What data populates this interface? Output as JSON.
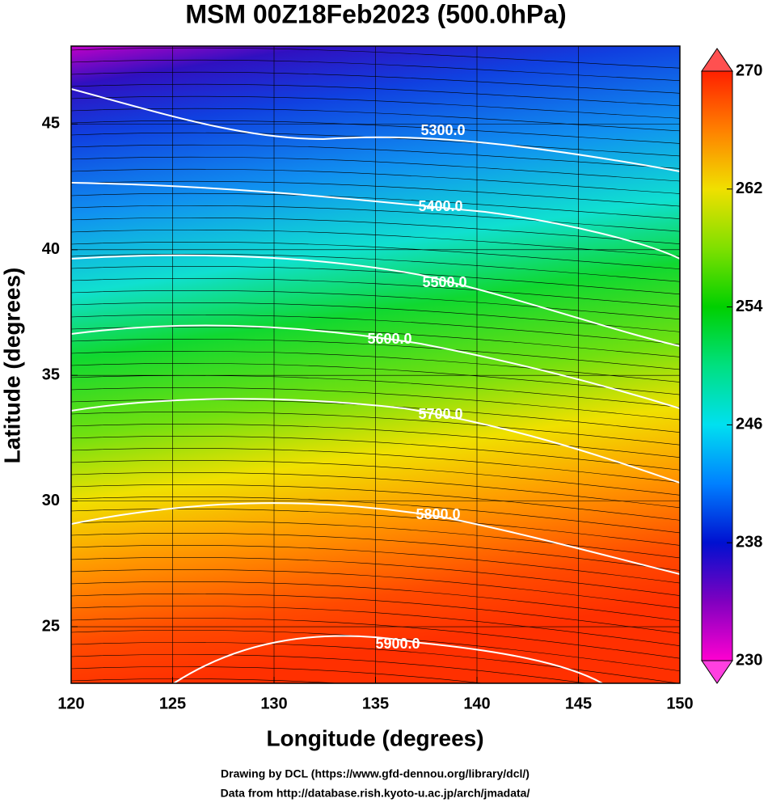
{
  "chart_data": {
    "type": "contour",
    "title": "MSM 00Z18Feb2023 (500.0hPa)",
    "xlabel": "Longitude (degrees)",
    "ylabel": "Latitude  (degrees)",
    "xlim": [
      120,
      150
    ],
    "ylim": [
      22.75,
      48.1
    ],
    "xticks": [
      120,
      125,
      130,
      135,
      140,
      145,
      150
    ],
    "yticks": [
      25,
      30,
      35,
      40,
      45
    ],
    "grid": true,
    "contours": {
      "color": "#ffffff",
      "levels": [
        5300,
        5400,
        5500,
        5600,
        5700,
        5800,
        5900
      ],
      "value_labels": [
        "5300.0",
        "5400.0",
        "5500.0",
        "5600.0",
        "5700.0",
        "5800.0",
        "5900.0"
      ]
    },
    "colorbar": {
      "lim": [
        230,
        270
      ],
      "ticks": [
        230,
        238,
        246,
        254,
        262,
        270
      ]
    },
    "notes": [
      "Drawing by DCL (https://www.gfd-dennou.org/library/dcl/)",
      "Data from http://database.rish.kyoto-u.ac.jp/arch/jmadata/"
    ]
  }
}
